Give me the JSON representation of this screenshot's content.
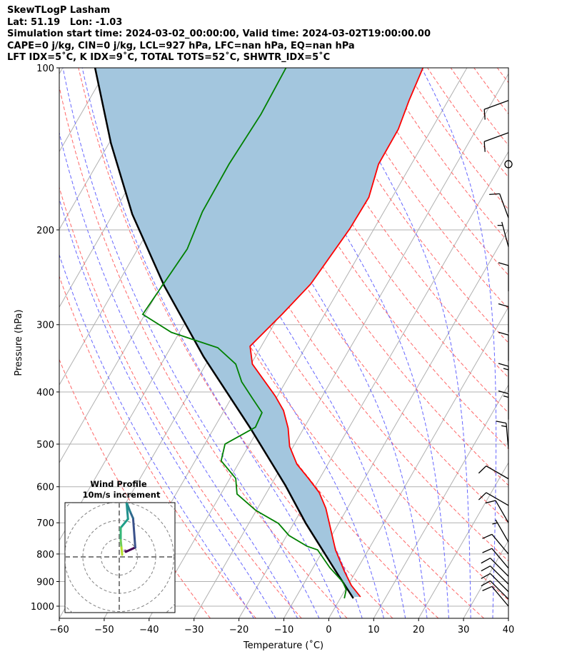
{
  "header": {
    "line1": "SkewTLogP Lasham",
    "line2": "Lat: 51.19   Lon: -1.03",
    "line3": "Simulation start time: 2024-03-02_00:00:00, Valid time: 2024-03-02T19:00:00.00",
    "line4": "CAPE=0 j/kg, CIN=0 j/kg, LCL=927 hPa, LFC=nan hPa, EQ=nan hPa",
    "line5": "LFT IDX=5˚C, K IDX=9˚C, TOTAL TOTS=52˚C, SHWTR_IDX=5˚C"
  },
  "chart_data": {
    "type": "line",
    "title": "SkewTLogP Lasham",
    "xlabel": "Temperature (˚C)",
    "ylabel": "Pressure (hPa)",
    "xlim": [
      -60,
      40
    ],
    "ylim": [
      1053,
      100
    ],
    "skew_deg": 30,
    "x_ticks": [
      -60,
      -50,
      -40,
      -30,
      -20,
      -10,
      0,
      10,
      20,
      30,
      40
    ],
    "x_tick_labels": [
      "−60",
      "−50",
      "−40",
      "−30",
      "−20",
      "−10",
      "0",
      "10",
      "20",
      "30",
      "40"
    ],
    "y_ticks": [
      100,
      200,
      300,
      400,
      500,
      600,
      700,
      800,
      900,
      1000
    ],
    "y_tick_labels": [
      "100",
      "200",
      "300",
      "400",
      "500",
      "600",
      "700",
      "800",
      "900",
      "1000"
    ],
    "colors": {
      "temperature": "#ff0000",
      "dewpoint": "#008000",
      "parcel": "#000000",
      "shade": "#a3c6de",
      "isotherm": "#b0b0b0",
      "dry_adiabat": "#ff6666",
      "moist_adiabat": "#6666ff"
    },
    "series": [
      {
        "name": "temperature",
        "p": [
          961,
          915,
          861,
          786,
          658,
          615,
          579,
          545,
          505,
          467,
          433,
          407,
          355,
          329,
          287,
          252,
          199,
          174,
          151,
          130,
          115,
          100
        ],
        "t": [
          4.3,
          0.8,
          -2.6,
          -7.3,
          -14.8,
          -18.3,
          -22.5,
          -26.9,
          -30.8,
          -33.5,
          -36.8,
          -40.5,
          -49.7,
          -52.5,
          -49.5,
          -47.0,
          -45.4,
          -45.2,
          -47.3,
          -47.4,
          -48.7,
          -49.8
        ]
      },
      {
        "name": "dewpoint",
        "p": [
          967,
          932,
          901,
          848,
          786,
          774,
          739,
          702,
          664,
          619,
          579,
          537,
          500,
          465,
          437,
          411,
          383,
          355,
          331,
          310,
          287,
          217,
          185,
          151,
          122,
          100
        ],
        "t": [
          0.9,
          0.2,
          -1.6,
          -6.3,
          -11.3,
          -14.1,
          -19.5,
          -23.4,
          -30.1,
          -36.4,
          -38.7,
          -44.2,
          -45.5,
          -40.9,
          -41.3,
          -45.3,
          -49.8,
          -53.4,
          -59.5,
          -71.8,
          -80.5,
          -79.0,
          -80.4,
          -80.6,
          -79.9,
          -80.3
        ]
      },
      {
        "name": "parcel",
        "p": [
          967,
          861,
          702,
          597,
          467,
          344,
          254,
          187,
          138,
          100
        ],
        "t": [
          2.9,
          -4.5,
          -17.3,
          -26.7,
          -41.9,
          -61.5,
          -79.4,
          -95.7,
          -109.6,
          -122.8
        ]
      }
    ],
    "wind_barbs": [
      {
        "p": 115,
        "dir": 250,
        "kt": 10
      },
      {
        "p": 132,
        "dir": 250,
        "kt": 10
      },
      {
        "p": 151,
        "dir": 0,
        "kt": 0
      },
      {
        "p": 190,
        "dir": 340,
        "kt": 10
      },
      {
        "p": 215,
        "dir": 345,
        "kt": 5
      },
      {
        "p": 260,
        "dir": 360,
        "kt": 10
      },
      {
        "p": 310,
        "dir": 360,
        "kt": 10
      },
      {
        "p": 350,
        "dir": 360,
        "kt": 10
      },
      {
        "p": 400,
        "dir": 360,
        "kt": 15
      },
      {
        "p": 450,
        "dir": 360,
        "kt": 15
      },
      {
        "p": 510,
        "dir": 355,
        "kt": 15
      },
      {
        "p": 580,
        "dir": 300,
        "kt": 10
      },
      {
        "p": 650,
        "dir": 300,
        "kt": 10
      },
      {
        "p": 700,
        "dir": 330,
        "kt": 10
      },
      {
        "p": 760,
        "dir": 330,
        "kt": 5
      },
      {
        "p": 800,
        "dir": 320,
        "kt": 10
      },
      {
        "p": 850,
        "dir": 320,
        "kt": 10
      },
      {
        "p": 880,
        "dir": 315,
        "kt": 10
      },
      {
        "p": 910,
        "dir": 315,
        "kt": 10
      },
      {
        "p": 940,
        "dir": 315,
        "kt": 10
      },
      {
        "p": 970,
        "dir": 315,
        "kt": 10
      },
      {
        "p": 1000,
        "dir": 320,
        "kt": 10
      }
    ],
    "hodograph": {
      "title": "Wind Profile",
      "subtitle": "10m/s increment",
      "ring_step_ms": 10,
      "u": [
        3.6,
        8.8,
        7.6,
        6.0,
        4.0,
        4.8,
        0.8,
        0.8,
        1.2,
        1.6
      ],
      "v": [
        2.8,
        5.2,
        21.2,
        24.8,
        30.0,
        20.8,
        16.0,
        9.2,
        5.2,
        1.2
      ]
    }
  }
}
